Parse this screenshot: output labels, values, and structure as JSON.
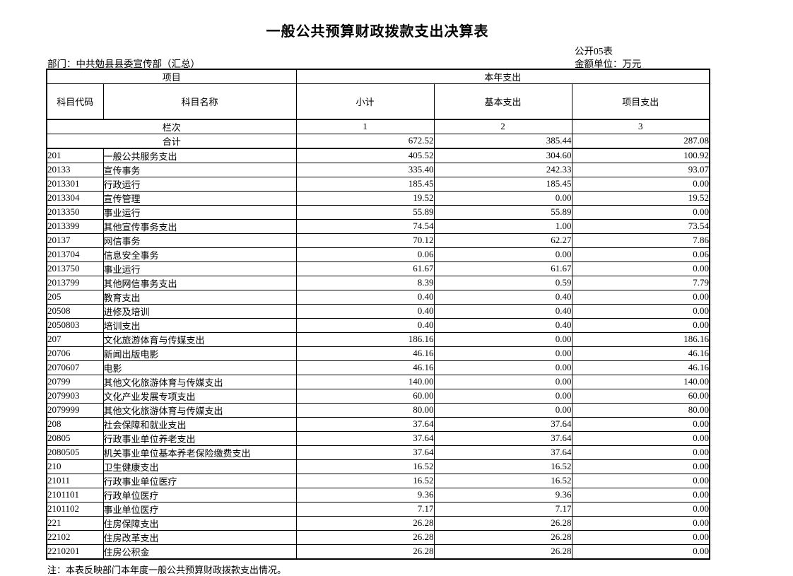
{
  "page": {
    "title": "一般公共预算财政拨款支出决算表",
    "form_no": "公开05表",
    "unit_label": "金额单位：万元",
    "department_label": "部门：中共勉县县委宣传部（汇总）",
    "note": "注：本表反映部门本年度一般公共预算财政拨款支出情况。"
  },
  "table": {
    "group_headers": {
      "project": "项目",
      "current_year_expenditure": "本年支出"
    },
    "columns": {
      "code": "科目代码",
      "name": "科目名称",
      "subtotal": "小计",
      "basic": "基本支出",
      "project": "项目支出"
    },
    "index_row": {
      "label": "栏次",
      "col1": "1",
      "col2": "2",
      "col3": "3"
    },
    "total_row": {
      "label": "合计",
      "subtotal": "672.52",
      "basic": "385.44",
      "project": "287.08"
    },
    "rows": [
      {
        "code": "201",
        "name": "一般公共服务支出",
        "subtotal": "405.52",
        "basic": "304.60",
        "project": "100.92"
      },
      {
        "code": "20133",
        "name": "宣传事务",
        "subtotal": "335.40",
        "basic": "242.33",
        "project": "93.07"
      },
      {
        "code": "2013301",
        "name": "行政运行",
        "subtotal": "185.45",
        "basic": "185.45",
        "project": "0.00"
      },
      {
        "code": "2013304",
        "name": "宣传管理",
        "subtotal": "19.52",
        "basic": "0.00",
        "project": "19.52"
      },
      {
        "code": "2013350",
        "name": "事业运行",
        "subtotal": "55.89",
        "basic": "55.89",
        "project": "0.00"
      },
      {
        "code": "2013399",
        "name": "其他宣传事务支出",
        "subtotal": "74.54",
        "basic": "1.00",
        "project": "73.54"
      },
      {
        "code": "20137",
        "name": "网信事务",
        "subtotal": "70.12",
        "basic": "62.27",
        "project": "7.86"
      },
      {
        "code": "2013704",
        "name": "信息安全事务",
        "subtotal": "0.06",
        "basic": "0.00",
        "project": "0.06"
      },
      {
        "code": "2013750",
        "name": "事业运行",
        "subtotal": "61.67",
        "basic": "61.67",
        "project": "0.00"
      },
      {
        "code": "2013799",
        "name": "其他网信事务支出",
        "subtotal": "8.39",
        "basic": "0.59",
        "project": "7.79"
      },
      {
        "code": "205",
        "name": "教育支出",
        "subtotal": "0.40",
        "basic": "0.40",
        "project": "0.00"
      },
      {
        "code": "20508",
        "name": "进修及培训",
        "subtotal": "0.40",
        "basic": "0.40",
        "project": "0.00"
      },
      {
        "code": "2050803",
        "name": "培训支出",
        "subtotal": "0.40",
        "basic": "0.40",
        "project": "0.00"
      },
      {
        "code": "207",
        "name": "文化旅游体育与传媒支出",
        "subtotal": "186.16",
        "basic": "0.00",
        "project": "186.16"
      },
      {
        "code": "20706",
        "name": "新闻出版电影",
        "subtotal": "46.16",
        "basic": "0.00",
        "project": "46.16"
      },
      {
        "code": "2070607",
        "name": "电影",
        "subtotal": "46.16",
        "basic": "0.00",
        "project": "46.16"
      },
      {
        "code": "20799",
        "name": "其他文化旅游体育与传媒支出",
        "subtotal": "140.00",
        "basic": "0.00",
        "project": "140.00"
      },
      {
        "code": "2079903",
        "name": "文化产业发展专项支出",
        "subtotal": "60.00",
        "basic": "0.00",
        "project": "60.00"
      },
      {
        "code": "2079999",
        "name": "其他文化旅游体育与传媒支出",
        "subtotal": "80.00",
        "basic": "0.00",
        "project": "80.00"
      },
      {
        "code": "208",
        "name": "社会保障和就业支出",
        "subtotal": "37.64",
        "basic": "37.64",
        "project": "0.00"
      },
      {
        "code": "20805",
        "name": "行政事业单位养老支出",
        "subtotal": "37.64",
        "basic": "37.64",
        "project": "0.00"
      },
      {
        "code": "2080505",
        "name": "机关事业单位基本养老保险缴费支出",
        "subtotal": "37.64",
        "basic": "37.64",
        "project": "0.00"
      },
      {
        "code": "210",
        "name": "卫生健康支出",
        "subtotal": "16.52",
        "basic": "16.52",
        "project": "0.00"
      },
      {
        "code": "21011",
        "name": "行政事业单位医疗",
        "subtotal": "16.52",
        "basic": "16.52",
        "project": "0.00"
      },
      {
        "code": "2101101",
        "name": "行政单位医疗",
        "subtotal": "9.36",
        "basic": "9.36",
        "project": "0.00"
      },
      {
        "code": "2101102",
        "name": "事业单位医疗",
        "subtotal": "7.17",
        "basic": "7.17",
        "project": "0.00"
      },
      {
        "code": "221",
        "name": "住房保障支出",
        "subtotal": "26.28",
        "basic": "26.28",
        "project": "0.00"
      },
      {
        "code": "22102",
        "name": "住房改革支出",
        "subtotal": "26.28",
        "basic": "26.28",
        "project": "0.00"
      },
      {
        "code": "2210201",
        "name": "住房公积金",
        "subtotal": "26.28",
        "basic": "26.28",
        "project": "0.00"
      }
    ]
  }
}
